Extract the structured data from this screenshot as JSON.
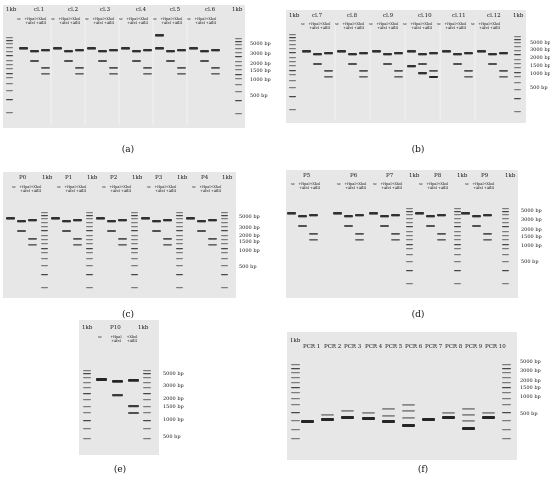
{
  "panels": {
    "a": {
      "caption": "(a)",
      "ladder_label": "1kb",
      "clones": [
        "cl.1",
        "cl.2",
        "cl.3",
        "cl.4",
        "cl.5",
        "cl.6"
      ],
      "ladder_label_end": "1kb",
      "lane_labels": {
        "sc": "sc",
        "hpa": "+HpaI\n+AfeI",
        "xho": "+XhoI\n+AflII"
      },
      "markers": [
        "5000 bp",
        "3000 bp",
        "2000 bp",
        "1500 bp",
        "1000 bp",
        "500 bp"
      ]
    },
    "b": {
      "caption": "(b)",
      "ladder_label": "1kb",
      "clones": [
        "cl.7",
        "cl.8",
        "cl.9",
        "cl.10",
        "cl.11",
        "cl.12"
      ],
      "ladder_label_end": "1kb",
      "lane_labels": {
        "sc": "sc",
        "hpa": "+HpaI\n+AfeI",
        "xho": "+XhoI\n+AflII"
      },
      "markers": [
        "5000 bp",
        "3000 bp",
        "2000 bp",
        "1500 bp",
        "1000 bp",
        "500 bp"
      ]
    },
    "c": {
      "caption": "(c)",
      "groups": [
        "P0",
        "P1",
        "P2",
        "P3",
        "P4"
      ],
      "ladder_label": "1kb",
      "lane_labels": {
        "sc": "sc",
        "hpa": "+HpaI\n+AfeI",
        "xho": "+XhoI\n+AflII"
      },
      "markers": [
        "5000 bp",
        "3000 bp",
        "2000 bp",
        "1500 bp",
        "1000 bp",
        "500 bp"
      ]
    },
    "d": {
      "caption": "(d)",
      "groups": [
        "P5",
        "P6",
        "P7",
        "P8",
        "P9"
      ],
      "ladder_label": "1kb",
      "lane_labels": {
        "sc": "sc",
        "hpa": "+HpaI\n+AfeI",
        "xho": "+XhoI\n+AflII"
      },
      "markers": [
        "5000 bp",
        "3000 bp",
        "2000 bp",
        "1500 bp",
        "1000 bp",
        "500 bp"
      ]
    },
    "e": {
      "caption": "(e)",
      "ladder_label": "1kb",
      "group": "P10",
      "ladder_label_end": "1kb",
      "lane_labels": {
        "sc": "sc",
        "hpa": "+HpaI\n+AfeI",
        "xho": "+XhoI\n+AflII"
      },
      "markers": [
        "5000 bp",
        "3000 bp",
        "2000 bp",
        "1500 bp",
        "1000 bp",
        "500 bp"
      ]
    },
    "f": {
      "caption": "(f)",
      "ladder_label": "1kb",
      "pcr_lanes": [
        "PCR 1",
        "PCR 2",
        "PCR 3",
        "PCR 4",
        "PCR 5",
        "PCR 6",
        "PCR 7",
        "PCR 8",
        "PCR 9",
        "PCR 10"
      ],
      "markers": [
        "5000 bp",
        "3000 bp",
        "2000 bp",
        "1500 bp",
        "1000 bp",
        "500 bp"
      ]
    }
  }
}
